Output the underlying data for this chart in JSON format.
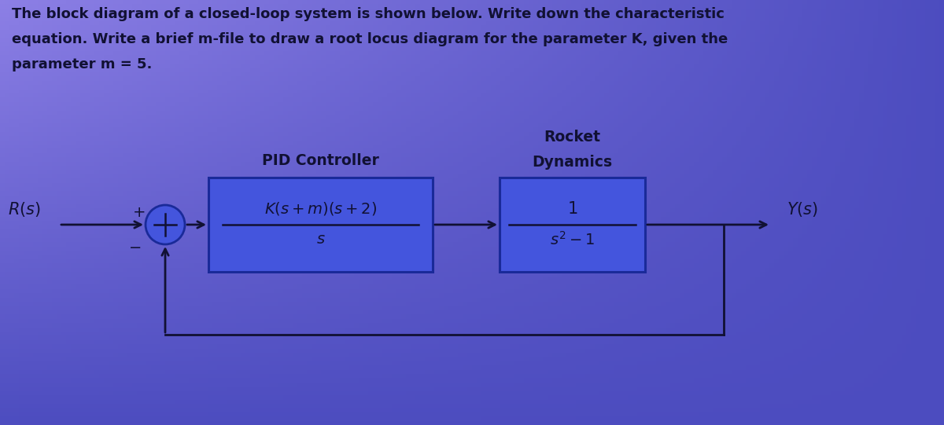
{
  "background_color": "#3344cc",
  "bg_top_color": "#8899ee",
  "text_color": "#111133",
  "box_edge_color": "#223399",
  "box_fill_color": "#4455dd",
  "title_text_line1": "The block diagram of a closed-loop system is shown below. Write down the characteristic",
  "title_text_line2": "equation. Write a brief m-file to draw a root locus diagram for the parameter K, given the",
  "title_text_line3": "parameter m = 5.",
  "label_Rs": "$R(s)$",
  "label_plus": "+",
  "label_minus": "−",
  "label_Ys": "$Y(s)$",
  "pid_label": "PID Controller",
  "pid_numerator": "$K(s+m)(s+2)$",
  "pid_denominator": "$s$",
  "rocket_label_line1": "Rocket",
  "rocket_label_line2": "Dynamics",
  "rocket_numerator": "$1$",
  "rocket_denominator": "$s^{2}-1$",
  "fig_width": 12.0,
  "fig_height": 5.41,
  "dpi": 100
}
